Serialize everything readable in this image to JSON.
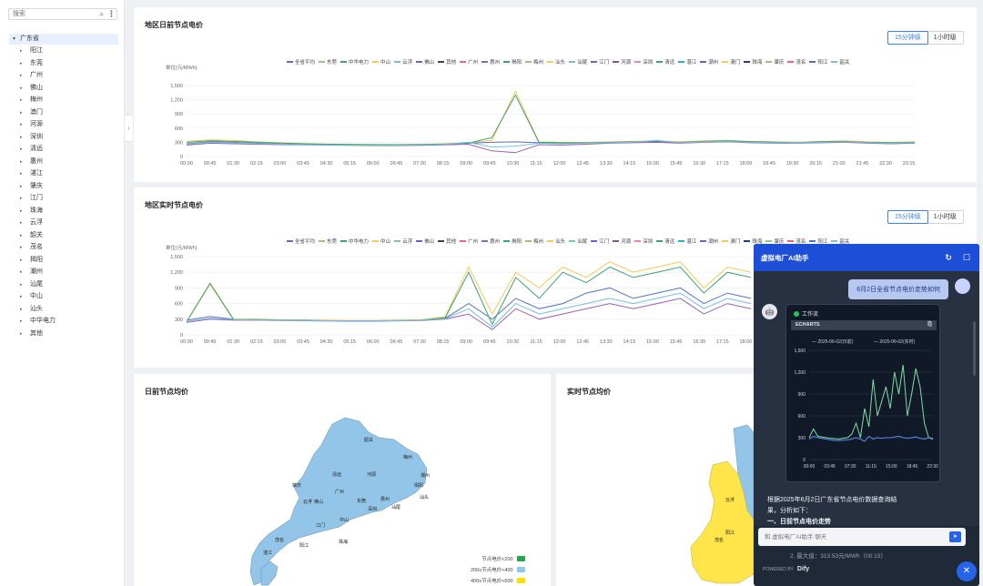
{
  "colors": {
    "accent": "#3b82f6",
    "map_base": "#93c5e8",
    "map_yellow": "#ffe54a",
    "chat_header": "#1d4ed8"
  },
  "sidebar": {
    "search_placeholder": "搜索",
    "search_icon": "search-icon",
    "more_icon": "more-vertical-icon",
    "root": "广东省",
    "items": [
      "阳江",
      "东莞",
      "广州",
      "佛山",
      "梅州",
      "澳门",
      "河源",
      "深圳",
      "清远",
      "惠州",
      "湛江",
      "肇庆",
      "江门",
      "珠海",
      "云浮",
      "韶关",
      "茂名",
      "揭阳",
      "潮州",
      "汕尾",
      "中山",
      "汕头",
      "中华电力",
      "其他"
    ]
  },
  "day_ahead": {
    "title": "地区日前节点电价",
    "seg": [
      "15分钟级",
      "1小时级"
    ],
    "unit": "单位(元/MWh)"
  },
  "realtime": {
    "title": "地区实时节点电价",
    "seg": [
      "15分钟级",
      "1小时级"
    ],
    "unit": "单位(元/MWh)"
  },
  "legend": [
    {
      "name": "全省平均",
      "color": "#5470c6"
    },
    {
      "name": "东莞",
      "color": "#91cc75"
    },
    {
      "name": "中华电力",
      "color": "#3ba272"
    },
    {
      "name": "中山",
      "color": "#fac858"
    },
    {
      "name": "云浮",
      "color": "#73c0de"
    },
    {
      "name": "佛山",
      "color": "#5470c6"
    },
    {
      "name": "其他",
      "color": "#444444"
    },
    {
      "name": "广州",
      "color": "#ee6666"
    },
    {
      "name": "惠州",
      "color": "#9a60b4"
    },
    {
      "name": "揭阳",
      "color": "#3ba272"
    },
    {
      "name": "梅州",
      "color": "#91cc75"
    },
    {
      "name": "汕头",
      "color": "#fac858"
    },
    {
      "name": "汕尾",
      "color": "#73c0de"
    },
    {
      "name": "江门",
      "color": "#5470c6"
    },
    {
      "name": "河源",
      "color": "#8d4f9e"
    },
    {
      "name": "深圳",
      "color": "#ea7ccc"
    },
    {
      "name": "清远",
      "color": "#3ba272"
    },
    {
      "name": "湛江",
      "color": "#2bb0c4"
    },
    {
      "name": "潮州",
      "color": "#5470c6"
    },
    {
      "name": "澳门",
      "color": "#fac858"
    },
    {
      "name": "珠海",
      "color": "#1e3a8a"
    },
    {
      "name": "肇庆",
      "color": "#91cc75"
    },
    {
      "name": "茂名",
      "color": "#ee6666"
    },
    {
      "name": "阳江",
      "color": "#5470c6"
    },
    {
      "name": "韶关",
      "color": "#73c0de"
    }
  ],
  "chart_data": [
    {
      "type": "line",
      "title": "地区日前节点电价",
      "ylabel": "单位(元/MWh)",
      "ylim": [
        0,
        1500
      ],
      "yticks": [
        "0",
        "300",
        "600",
        "900",
        "1,200",
        "1,500"
      ],
      "x_ticks": [
        "00:00",
        "00:45",
        "01:30",
        "02:15",
        "03:00",
        "03:45",
        "04:30",
        "05:15",
        "06:00",
        "06:45",
        "07:30",
        "08:15",
        "09:00",
        "09:45",
        "10:30",
        "11:15",
        "12:00",
        "12:45",
        "13:30",
        "14:15",
        "15:00",
        "15:45",
        "16:30",
        "17:15",
        "18:00",
        "18:45",
        "19:30",
        "20:15",
        "21:00",
        "21:45",
        "22:30",
        "23:15"
      ],
      "series": [
        {
          "name": "全省平均",
          "values": [
            270,
            310,
            300,
            280,
            265,
            255,
            250,
            245,
            240,
            240,
            250,
            260,
            280,
            300,
            310,
            290,
            280,
            290,
            300,
            310,
            320,
            300,
            320,
            330,
            310,
            300,
            300,
            310,
            320,
            300,
            290,
            300
          ]
        },
        {
          "name": "中山",
          "values": [
            320,
            350,
            340,
            310,
            290,
            275,
            265,
            260,
            255,
            255,
            260,
            270,
            290,
            340,
            1380,
            310,
            300,
            300,
            310,
            320,
            330,
            310,
            330,
            340,
            320,
            310,
            300,
            320,
            330,
            310,
            300,
            310
          ]
        },
        {
          "name": "揭阳",
          "values": [
            300,
            330,
            320,
            300,
            285,
            270,
            260,
            255,
            250,
            250,
            255,
            265,
            285,
            400,
            1300,
            300,
            290,
            290,
            300,
            310,
            325,
            300,
            320,
            335,
            315,
            305,
            295,
            315,
            320,
            300,
            295,
            300
          ]
        },
        {
          "name": "惠州",
          "values": [
            240,
            280,
            270,
            260,
            250,
            245,
            240,
            235,
            230,
            230,
            235,
            245,
            260,
            120,
            80,
            250,
            240,
            260,
            280,
            290,
            300,
            280,
            300,
            310,
            290,
            280,
            280,
            290,
            300,
            280,
            270,
            280
          ]
        },
        {
          "name": "云浮",
          "values": [
            260,
            300,
            290,
            275,
            260,
            250,
            245,
            240,
            235,
            240,
            245,
            255,
            300,
            200,
            220,
            280,
            270,
            280,
            290,
            300,
            340,
            290,
            310,
            320,
            300,
            290,
            290,
            300,
            310,
            290,
            280,
            290
          ]
        }
      ]
    },
    {
      "type": "line",
      "title": "地区实时节点电价",
      "ylabel": "单位(元/MWh)",
      "ylim": [
        0,
        1500
      ],
      "yticks": [
        "0",
        "300",
        "600",
        "900",
        "1,200",
        "1,500"
      ],
      "x_ticks": [
        "00:00",
        "00:45",
        "01:30",
        "02:15",
        "03:00",
        "03:45",
        "04:30",
        "05:15",
        "06:00",
        "06:45",
        "07:30",
        "08:15",
        "09:00",
        "09:45",
        "10:30",
        "11:15",
        "12:00",
        "12:45",
        "13:30",
        "14:15",
        "15:00",
        "15:45",
        "16:30",
        "17:15",
        "18:00"
      ],
      "series": [
        {
          "name": "全省平均",
          "values": [
            280,
            350,
            300,
            290,
            285,
            280,
            275,
            270,
            270,
            275,
            280,
            320,
            600,
            300,
            700,
            500,
            600,
            800,
            900,
            700,
            800,
            900,
            600,
            800,
            700
          ]
        },
        {
          "name": "中山",
          "values": [
            260,
            1000,
            300,
            300,
            290,
            285,
            280,
            275,
            275,
            280,
            290,
            350,
            1300,
            400,
            1200,
            900,
            1300,
            1100,
            1400,
            1200,
            1300,
            1400,
            900,
            1300,
            1200
          ]
        },
        {
          "name": "揭阳",
          "values": [
            250,
            980,
            290,
            295,
            285,
            280,
            270,
            270,
            270,
            275,
            285,
            330,
            1200,
            200,
            1100,
            700,
            1200,
            1000,
            1300,
            1100,
            1200,
            1300,
            800,
            1200,
            1100
          ]
        },
        {
          "name": "惠州",
          "values": [
            240,
            300,
            280,
            280,
            275,
            270,
            265,
            262,
            262,
            268,
            275,
            300,
            400,
            100,
            500,
            300,
            400,
            500,
            600,
            500,
            600,
            700,
            400,
            600,
            500
          ]
        },
        {
          "name": "云浮",
          "values": [
            255,
            320,
            290,
            285,
            280,
            275,
            270,
            268,
            268,
            272,
            280,
            310,
            500,
            150,
            600,
            400,
            500,
            600,
            700,
            600,
            700,
            800,
            500,
            700,
            600
          ]
        }
      ]
    },
    {
      "type": "line",
      "title": "",
      "ylim": [
        0,
        1500
      ],
      "yticks": [
        "0",
        "300",
        "600",
        "900",
        "1,200",
        "1,500"
      ],
      "x_ticks": [
        "00:00",
        "03:45",
        "07:30",
        "11:15",
        "15:00",
        "18:45",
        "22:30"
      ],
      "legend": [
        "2025-06-02(日前)",
        "2025-06-02(实时)"
      ],
      "series": [
        {
          "name": "2025-06-02(实时)",
          "values": [
            300,
            420,
            320,
            310,
            300,
            290,
            285,
            280,
            290,
            300,
            350,
            500,
            300,
            700,
            450,
            1100,
            600,
            800,
            1000,
            700,
            1200,
            900,
            1300,
            600,
            900,
            1250,
            1000,
            500,
            300,
            280
          ]
        },
        {
          "name": "2025-06-02(日前)",
          "values": [
            280,
            320,
            300,
            290,
            280,
            270,
            260,
            260,
            265,
            270,
            280,
            300,
            280,
            250,
            320,
            280,
            300,
            290,
            300,
            300,
            310,
            320,
            300,
            290,
            300,
            310,
            290,
            280,
            300,
            290
          ]
        }
      ]
    }
  ],
  "bottom_left": {
    "title": "日前节点均价",
    "cities": [
      "韶关",
      "清远",
      "河源",
      "梅州",
      "潮州",
      "揭阳",
      "汕头",
      "汕尾",
      "惠州",
      "广州",
      "东莞",
      "深圳",
      "佛山",
      "肇庆",
      "云浮",
      "江门",
      "中山",
      "珠海",
      "阳江",
      "茂名",
      "湛江"
    ],
    "legend": [
      "节点电价<200",
      "200≤节点电价<400",
      "400≤节点电价<600"
    ],
    "legend_colors": [
      "#22a84a",
      "#8cc8ec",
      "#ffe000"
    ]
  },
  "bottom_right": {
    "title": "实时节点均价",
    "cities": [
      "云浮",
      "茂名",
      "阳江"
    ]
  },
  "chat": {
    "title": "虚拟电厂AI助手",
    "refresh_icon": "refresh-icon",
    "chat_icon": "chat-bubble-icon",
    "user_message": "6月2日全省节点电价走势如何",
    "workflow_label": "工作流",
    "echarts_label": "ECHARTS",
    "copy_icon": "copy-icon",
    "answer_line1": "根据2025年6月2日广东省节点电价数据查询结",
    "answer_line2": "果，分析如下：",
    "answer_line3": "一、日前节点电价走势",
    "answer_line4": "2. 最大值：313.53元/MWh（00:15）",
    "input_placeholder": "和 虚拟电厂AI助手 聊天",
    "send_icon": "send-icon",
    "powered_by": "POWERED BY",
    "brand": "Dify",
    "close_icon": "close-icon"
  }
}
